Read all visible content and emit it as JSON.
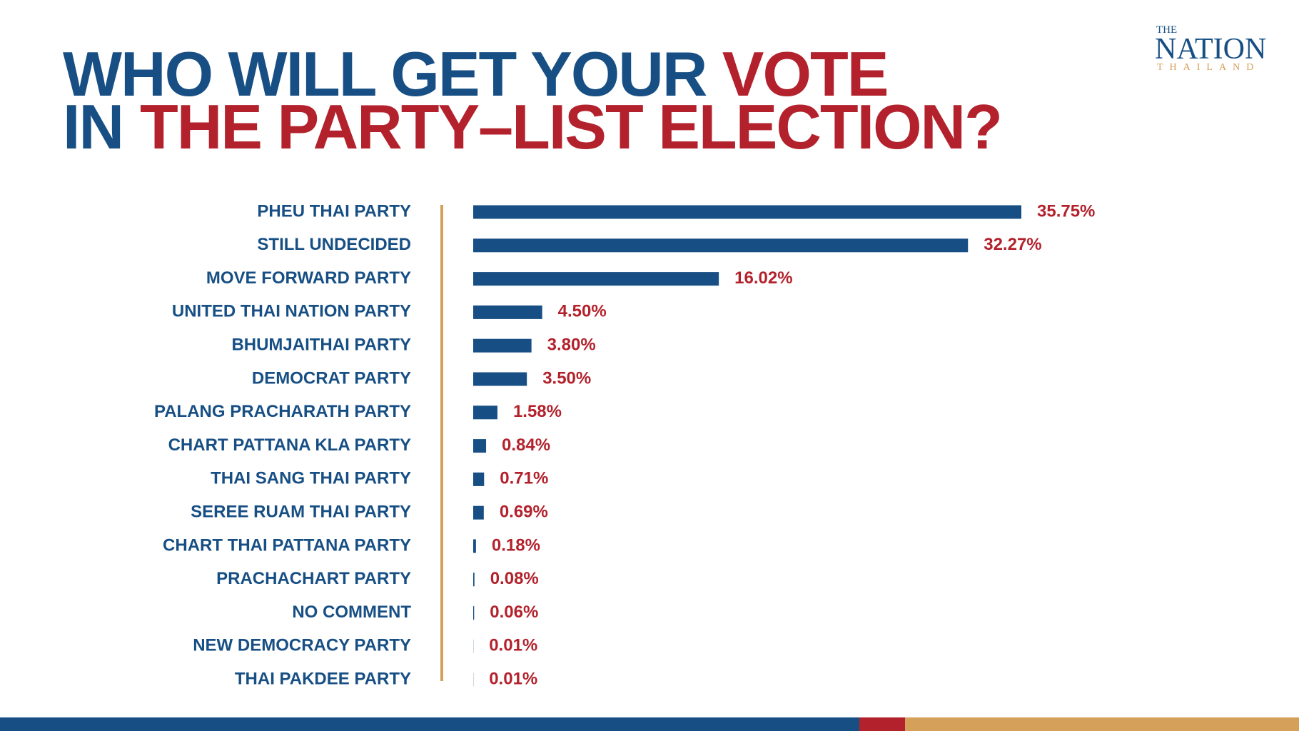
{
  "chart_data": {
    "type": "bar",
    "orientation": "horizontal",
    "title": [
      [
        {
          "text": "WHO WILL GET YOUR",
          "color": "#174f84"
        },
        {
          "text": "VOTE",
          "color": "#b3222c"
        }
      ],
      [
        {
          "text": "IN",
          "color": "#174f84"
        },
        {
          "text": "THE PARTY–LIST ELECTION?",
          "color": "#b3222c"
        }
      ]
    ],
    "logo": {
      "top": "THE",
      "main": "NATION",
      "sub": "THAILAND"
    },
    "categories": [
      "PHEU THAI PARTY",
      "STILL UNDECIDED",
      "MOVE FORWARD PARTY",
      "UNITED THAI NATION PARTY",
      "BHUMJAITHAI PARTY",
      "DEMOCRAT PARTY",
      "PALANG PRACHARATH PARTY",
      "CHART PATTANA KLA PARTY",
      "THAI SANG THAI PARTY",
      "SEREE RUAM THAI PARTY",
      "CHART THAI PATTANA PARTY",
      "PRACHACHART PARTY",
      "NO COMMENT",
      "NEW DEMOCRACY PARTY",
      "THAI PAKDEE PARTY"
    ],
    "values": [
      35.75,
      32.27,
      16.02,
      4.5,
      3.8,
      3.5,
      1.58,
      0.84,
      0.71,
      0.69,
      0.18,
      0.08,
      0.06,
      0.01,
      0.01
    ],
    "value_labels": [
      "35.75%",
      "32.27%",
      "16.02%",
      "4.50%",
      "3.80%",
      "3.50%",
      "1.58%",
      "0.84%",
      "0.71%",
      "0.69%",
      "0.18%",
      "0.08%",
      "0.06%",
      "0.01%",
      "0.01%"
    ],
    "color": "#174f84",
    "label_color": "#b3222c",
    "xlim": [
      0,
      35.75
    ]
  }
}
